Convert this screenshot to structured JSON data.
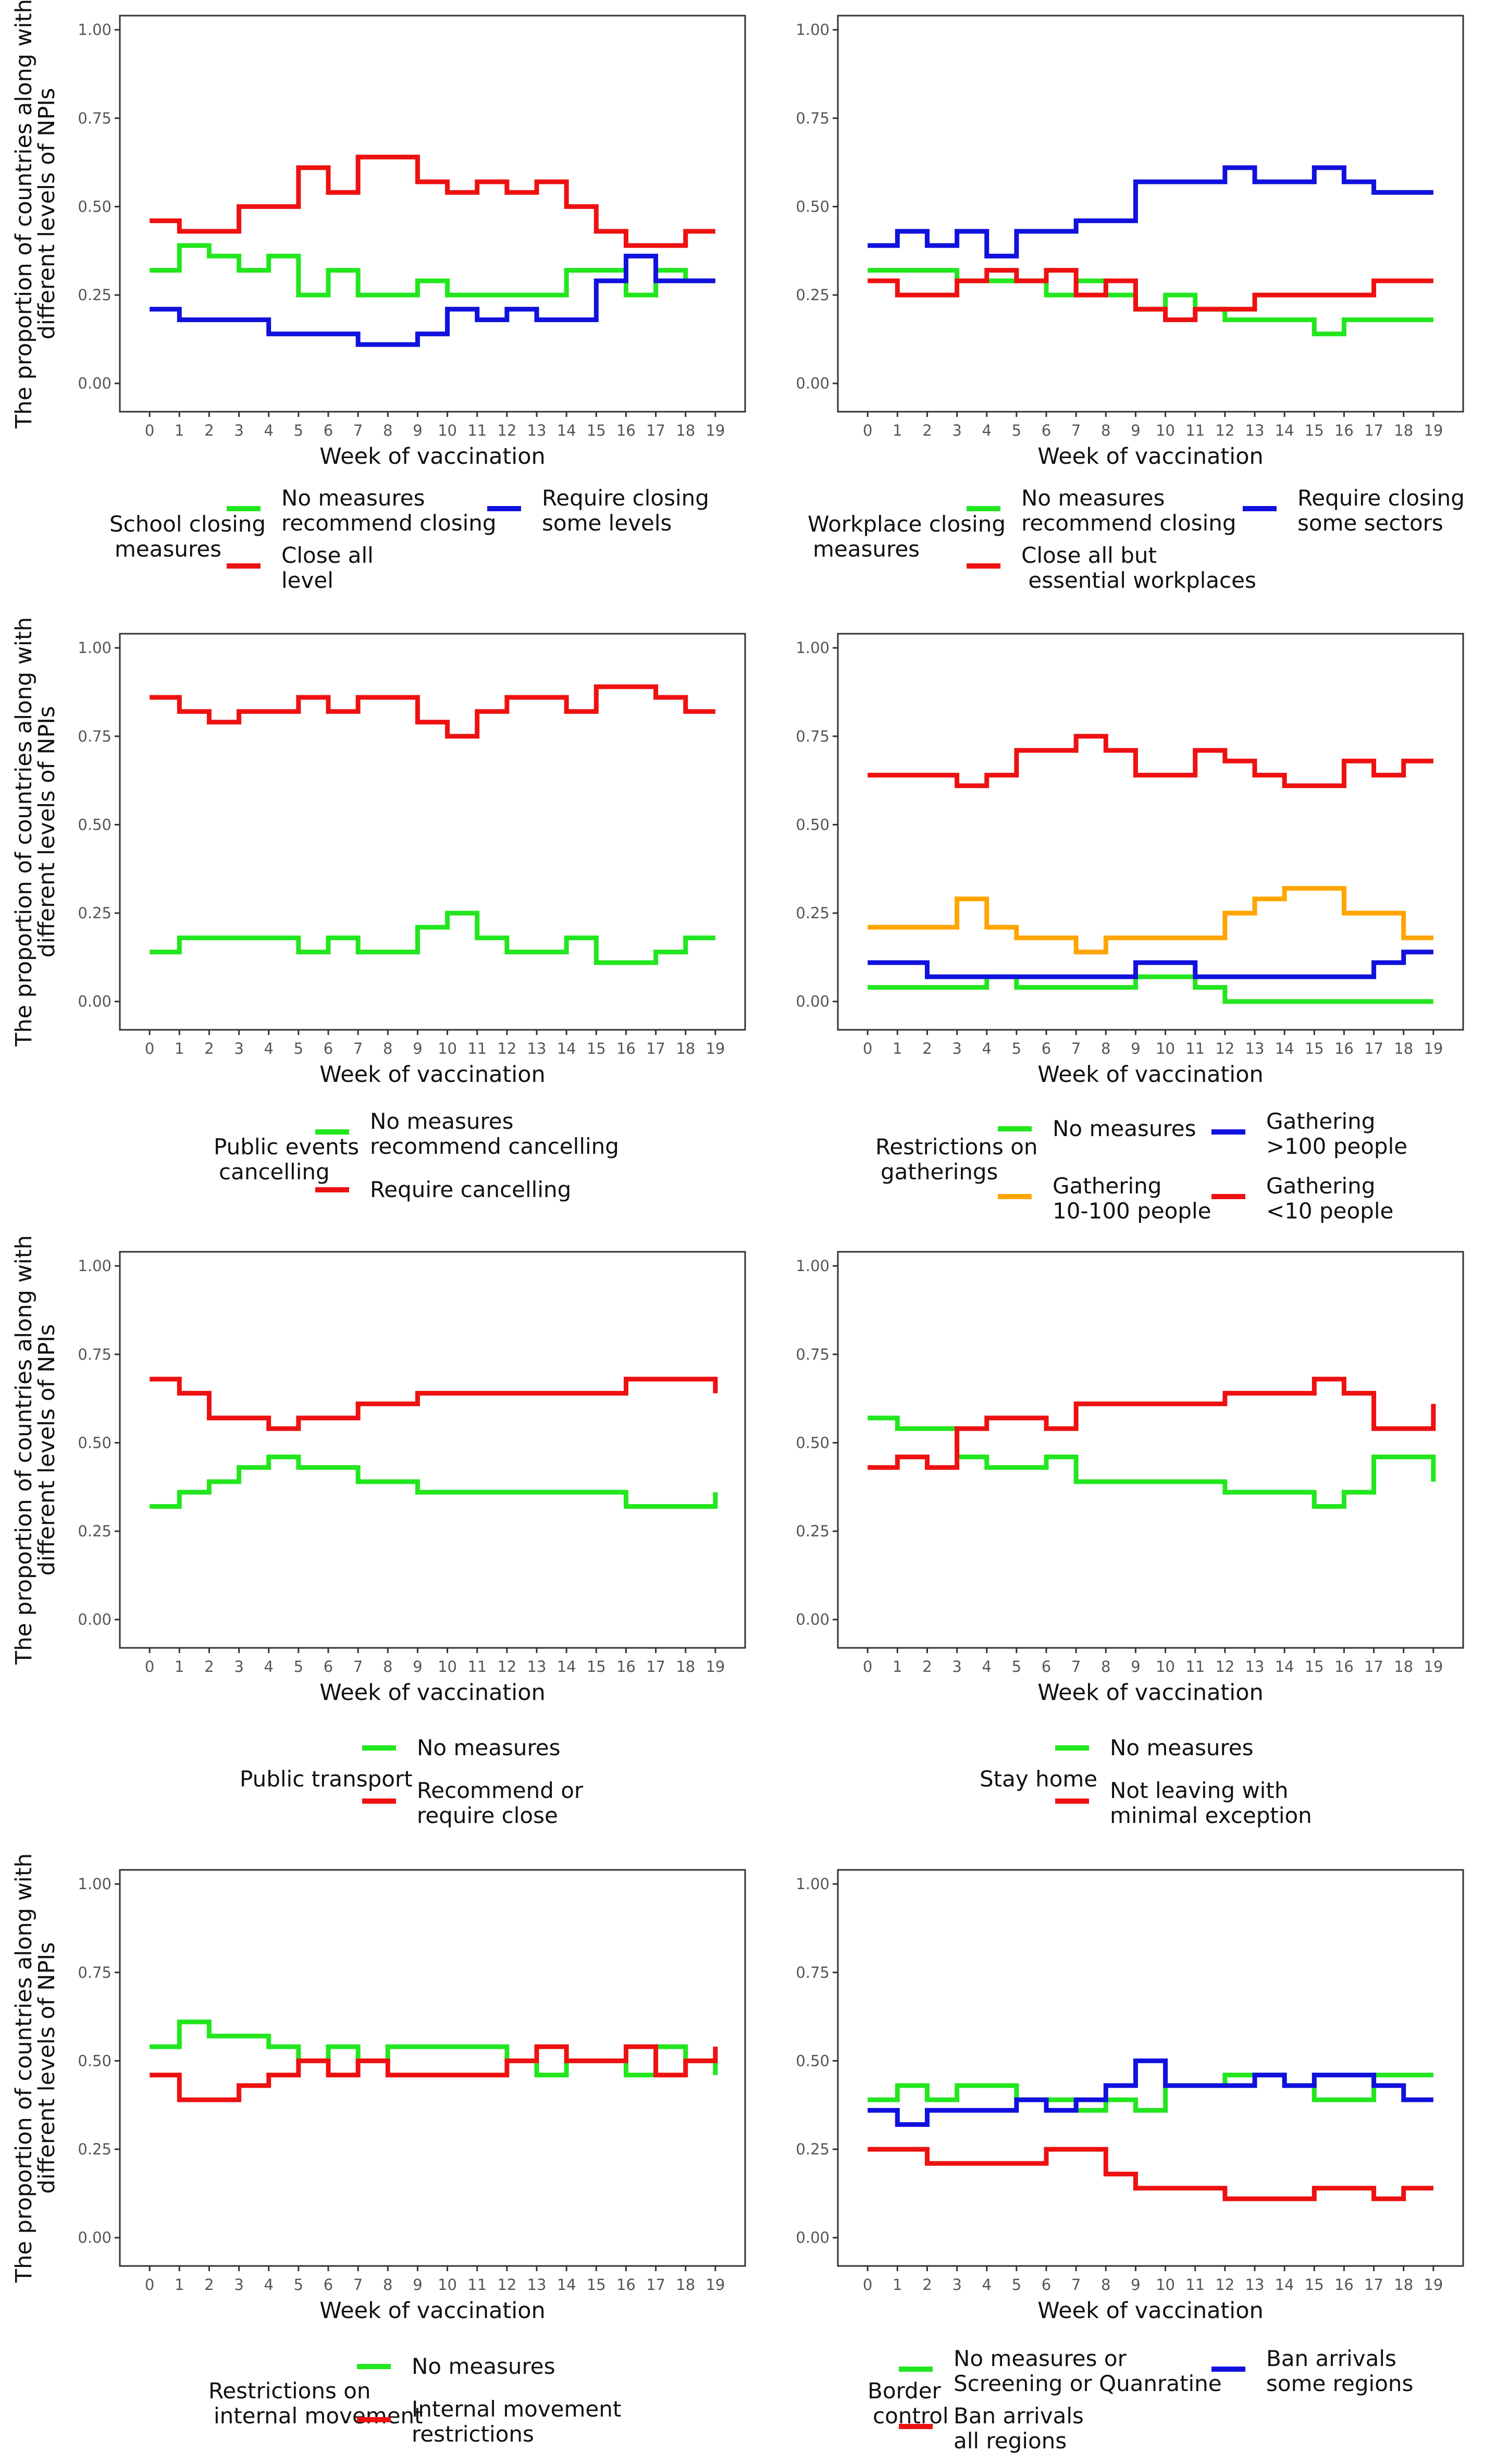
{
  "colors": {
    "green": "#22e61e",
    "red": "#ee1111",
    "blue": "#1111dd",
    "orange": "#ffa500",
    "axis": "#333333",
    "tick": "#555555"
  },
  "y_axis_label": [
    "The proportion of countries along with",
    "different levels of NPIs"
  ],
  "chart_data": [
    {
      "type": "line",
      "xlabel": "Week of vaccination",
      "x": [
        0,
        1,
        2,
        3,
        4,
        5,
        6,
        7,
        8,
        9,
        10,
        11,
        12,
        13,
        14,
        15,
        16,
        17,
        18,
        19
      ],
      "ylim": [
        0,
        1
      ],
      "yticks": [
        "0.00",
        "0.25",
        "0.50",
        "0.75",
        "1.00"
      ],
      "legend_title": [
        "School closing",
        "measures"
      ],
      "series": [
        {
          "name": "No measures\nrecommend closing",
          "color": "green",
          "values": [
            0.32,
            0.39,
            0.36,
            0.32,
            0.36,
            0.25,
            0.32,
            0.25,
            0.25,
            0.29,
            0.25,
            0.25,
            0.25,
            0.25,
            0.32,
            0.32,
            0.25,
            0.32,
            0.29,
            0.29
          ]
        },
        {
          "name": "Close all\nlevel",
          "color": "red",
          "values": [
            0.46,
            0.43,
            0.43,
            0.5,
            0.5,
            0.61,
            0.54,
            0.64,
            0.64,
            0.57,
            0.54,
            0.57,
            0.54,
            0.57,
            0.5,
            0.43,
            0.39,
            0.39,
            0.43,
            0.43
          ]
        },
        {
          "name": "Require closing\nsome levels",
          "color": "blue",
          "values": [
            0.21,
            0.18,
            0.18,
            0.18,
            0.14,
            0.14,
            0.14,
            0.11,
            0.11,
            0.14,
            0.21,
            0.18,
            0.21,
            0.18,
            0.18,
            0.29,
            0.36,
            0.29,
            0.29,
            0.29
          ]
        }
      ]
    },
    {
      "type": "line",
      "xlabel": "Week of vaccination",
      "x": [
        0,
        1,
        2,
        3,
        4,
        5,
        6,
        7,
        8,
        9,
        10,
        11,
        12,
        13,
        14,
        15,
        16,
        17,
        18,
        19
      ],
      "ylim": [
        0,
        1
      ],
      "yticks": [
        "0.00",
        "0.25",
        "0.50",
        "0.75",
        "1.00"
      ],
      "legend_title": [
        "Workplace closing",
        "measures"
      ],
      "series": [
        {
          "name": "No measures\nrecommend closing",
          "color": "green",
          "values": [
            0.32,
            0.32,
            0.32,
            0.29,
            0.29,
            0.29,
            0.25,
            0.29,
            0.25,
            0.21,
            0.25,
            0.21,
            0.18,
            0.18,
            0.18,
            0.14,
            0.18,
            0.18,
            0.18,
            0.18
          ]
        },
        {
          "name": "Close all but\n essential workplaces",
          "color": "red",
          "values": [
            0.29,
            0.25,
            0.25,
            0.29,
            0.32,
            0.29,
            0.32,
            0.25,
            0.29,
            0.21,
            0.18,
            0.21,
            0.21,
            0.25,
            0.25,
            0.25,
            0.25,
            0.29,
            0.29,
            0.29
          ]
        },
        {
          "name": "Require closing\nsome sectors",
          "color": "blue",
          "values": [
            0.39,
            0.43,
            0.39,
            0.43,
            0.36,
            0.43,
            0.43,
            0.46,
            0.46,
            0.57,
            0.57,
            0.57,
            0.61,
            0.57,
            0.57,
            0.61,
            0.57,
            0.54,
            0.54,
            0.54
          ]
        }
      ]
    },
    {
      "type": "line",
      "xlabel": "Week of vaccination",
      "x": [
        0,
        1,
        2,
        3,
        4,
        5,
        6,
        7,
        8,
        9,
        10,
        11,
        12,
        13,
        14,
        15,
        16,
        17,
        18,
        19
      ],
      "ylim": [
        0,
        1
      ],
      "yticks": [
        "0.00",
        "0.25",
        "0.50",
        "0.75",
        "1.00"
      ],
      "legend_title": [
        "Public events",
        "cancelling"
      ],
      "series": [
        {
          "name": "No measures\nrecommend cancelling",
          "color": "green",
          "values": [
            0.14,
            0.18,
            0.18,
            0.18,
            0.18,
            0.14,
            0.18,
            0.14,
            0.14,
            0.21,
            0.25,
            0.18,
            0.14,
            0.14,
            0.18,
            0.11,
            0.11,
            0.14,
            0.18,
            0.18
          ]
        },
        {
          "name": "Require cancelling",
          "color": "red",
          "values": [
            0.86,
            0.82,
            0.79,
            0.82,
            0.82,
            0.86,
            0.82,
            0.86,
            0.86,
            0.79,
            0.75,
            0.82,
            0.86,
            0.86,
            0.82,
            0.89,
            0.89,
            0.86,
            0.82,
            0.82
          ]
        }
      ]
    },
    {
      "type": "line",
      "xlabel": "Week of vaccination",
      "x": [
        0,
        1,
        2,
        3,
        4,
        5,
        6,
        7,
        8,
        9,
        10,
        11,
        12,
        13,
        14,
        15,
        16,
        17,
        18,
        19
      ],
      "ylim": [
        0,
        1
      ],
      "yticks": [
        "0.00",
        "0.25",
        "0.50",
        "0.75",
        "1.00"
      ],
      "legend_title": [
        "Restrictions on",
        "gatherings"
      ],
      "series": [
        {
          "name": "No measures",
          "color": "green",
          "values": [
            0.04,
            0.04,
            0.04,
            0.04,
            0.07,
            0.04,
            0.04,
            0.04,
            0.04,
            0.07,
            0.07,
            0.04,
            0.0,
            0.0,
            0.0,
            0.0,
            0.0,
            0.0,
            0.0,
            0.0
          ]
        },
        {
          "name": "Gathering\n10-100 people",
          "color": "orange",
          "values": [
            0.21,
            0.21,
            0.21,
            0.29,
            0.21,
            0.18,
            0.18,
            0.14,
            0.18,
            0.18,
            0.18,
            0.18,
            0.25,
            0.29,
            0.32,
            0.32,
            0.25,
            0.25,
            0.18,
            0.18
          ]
        },
        {
          "name": "Gathering\n>100 people",
          "color": "blue",
          "values": [
            0.11,
            0.11,
            0.07,
            0.07,
            0.07,
            0.07,
            0.07,
            0.07,
            0.07,
            0.11,
            0.11,
            0.07,
            0.07,
            0.07,
            0.07,
            0.07,
            0.07,
            0.11,
            0.14,
            0.14
          ]
        },
        {
          "name": "Gathering\n<10 people",
          "color": "red",
          "values": [
            0.64,
            0.64,
            0.64,
            0.61,
            0.64,
            0.71,
            0.71,
            0.75,
            0.71,
            0.64,
            0.64,
            0.71,
            0.68,
            0.64,
            0.61,
            0.61,
            0.68,
            0.64,
            0.68,
            0.68
          ]
        }
      ]
    },
    {
      "type": "line",
      "xlabel": "Week of vaccination",
      "x": [
        0,
        1,
        2,
        3,
        4,
        5,
        6,
        7,
        8,
        9,
        10,
        11,
        12,
        13,
        14,
        15,
        16,
        17,
        18,
        19
      ],
      "ylim": [
        0,
        1
      ],
      "yticks": [
        "0.00",
        "0.25",
        "0.50",
        "0.75",
        "1.00"
      ],
      "legend_title": [
        "Public transport"
      ],
      "series": [
        {
          "name": "No measures",
          "color": "green",
          "values": [
            0.32,
            0.36,
            0.39,
            0.43,
            0.46,
            0.43,
            0.43,
            0.39,
            0.39,
            0.36,
            0.36,
            0.36,
            0.36,
            0.36,
            0.36,
            0.36,
            0.32,
            0.32,
            0.32,
            0.36
          ]
        },
        {
          "name": "Recommend or\nrequire close",
          "color": "red",
          "values": [
            0.68,
            0.64,
            0.57,
            0.57,
            0.54,
            0.57,
            0.57,
            0.61,
            0.61,
            0.64,
            0.64,
            0.64,
            0.64,
            0.64,
            0.64,
            0.64,
            0.68,
            0.68,
            0.68,
            0.64
          ]
        }
      ]
    },
    {
      "type": "line",
      "xlabel": "Week of vaccination",
      "x": [
        0,
        1,
        2,
        3,
        4,
        5,
        6,
        7,
        8,
        9,
        10,
        11,
        12,
        13,
        14,
        15,
        16,
        17,
        18,
        19
      ],
      "ylim": [
        0,
        1
      ],
      "yticks": [
        "0.00",
        "0.25",
        "0.50",
        "0.75",
        "1.00"
      ],
      "legend_title": [
        "Stay home"
      ],
      "series": [
        {
          "name": "No measures",
          "color": "green",
          "values": [
            0.57,
            0.54,
            0.54,
            0.46,
            0.43,
            0.43,
            0.46,
            0.39,
            0.39,
            0.39,
            0.39,
            0.39,
            0.36,
            0.36,
            0.36,
            0.32,
            0.36,
            0.46,
            0.46,
            0.39
          ]
        },
        {
          "name": "Not leaving with\nminimal exception",
          "color": "red",
          "values": [
            0.43,
            0.46,
            0.43,
            0.54,
            0.57,
            0.57,
            0.54,
            0.61,
            0.61,
            0.61,
            0.61,
            0.61,
            0.64,
            0.64,
            0.64,
            0.68,
            0.64,
            0.54,
            0.54,
            0.61
          ]
        }
      ]
    },
    {
      "type": "line",
      "xlabel": "Week of vaccination",
      "x": [
        0,
        1,
        2,
        3,
        4,
        5,
        6,
        7,
        8,
        9,
        10,
        11,
        12,
        13,
        14,
        15,
        16,
        17,
        18,
        19
      ],
      "ylim": [
        0,
        1
      ],
      "yticks": [
        "0.00",
        "0.25",
        "0.50",
        "0.75",
        "1.00"
      ],
      "legend_title": [
        "Restrictions on",
        "internal movement"
      ],
      "series": [
        {
          "name": "No measures",
          "color": "green",
          "values": [
            0.54,
            0.61,
            0.57,
            0.57,
            0.54,
            0.5,
            0.54,
            0.5,
            0.54,
            0.54,
            0.54,
            0.54,
            0.5,
            0.46,
            0.5,
            0.5,
            0.46,
            0.54,
            0.5,
            0.46
          ]
        },
        {
          "name": "Internal movement\nrestrictions",
          "color": "red",
          "values": [
            0.46,
            0.39,
            0.39,
            0.43,
            0.46,
            0.5,
            0.46,
            0.5,
            0.46,
            0.46,
            0.46,
            0.46,
            0.5,
            0.54,
            0.5,
            0.5,
            0.54,
            0.46,
            0.5,
            0.54
          ]
        }
      ]
    },
    {
      "type": "line",
      "xlabel": "Week of vaccination",
      "x": [
        0,
        1,
        2,
        3,
        4,
        5,
        6,
        7,
        8,
        9,
        10,
        11,
        12,
        13,
        14,
        15,
        16,
        17,
        18,
        19
      ],
      "ylim": [
        0,
        1
      ],
      "yticks": [
        "0.00",
        "0.25",
        "0.50",
        "0.75",
        "1.00"
      ],
      "legend_title": [
        "Border",
        "control"
      ],
      "series": [
        {
          "name": "No measures or\nScreening or Quanratine",
          "color": "green",
          "values": [
            0.39,
            0.43,
            0.39,
            0.43,
            0.43,
            0.39,
            0.39,
            0.36,
            0.39,
            0.36,
            0.43,
            0.43,
            0.46,
            0.46,
            0.43,
            0.39,
            0.39,
            0.46,
            0.46,
            0.46
          ]
        },
        {
          "name": "Ban arrivals\nall regions",
          "color": "red",
          "values": [
            0.25,
            0.25,
            0.21,
            0.21,
            0.21,
            0.21,
            0.25,
            0.25,
            0.18,
            0.14,
            0.14,
            0.14,
            0.11,
            0.11,
            0.11,
            0.14,
            0.14,
            0.11,
            0.14,
            0.14
          ]
        },
        {
          "name": "Ban arrivals\nsome regions",
          "color": "blue",
          "values": [
            0.36,
            0.32,
            0.36,
            0.36,
            0.36,
            0.39,
            0.36,
            0.39,
            0.43,
            0.5,
            0.43,
            0.43,
            0.43,
            0.46,
            0.43,
            0.46,
            0.46,
            0.43,
            0.39,
            0.39
          ]
        }
      ]
    }
  ]
}
